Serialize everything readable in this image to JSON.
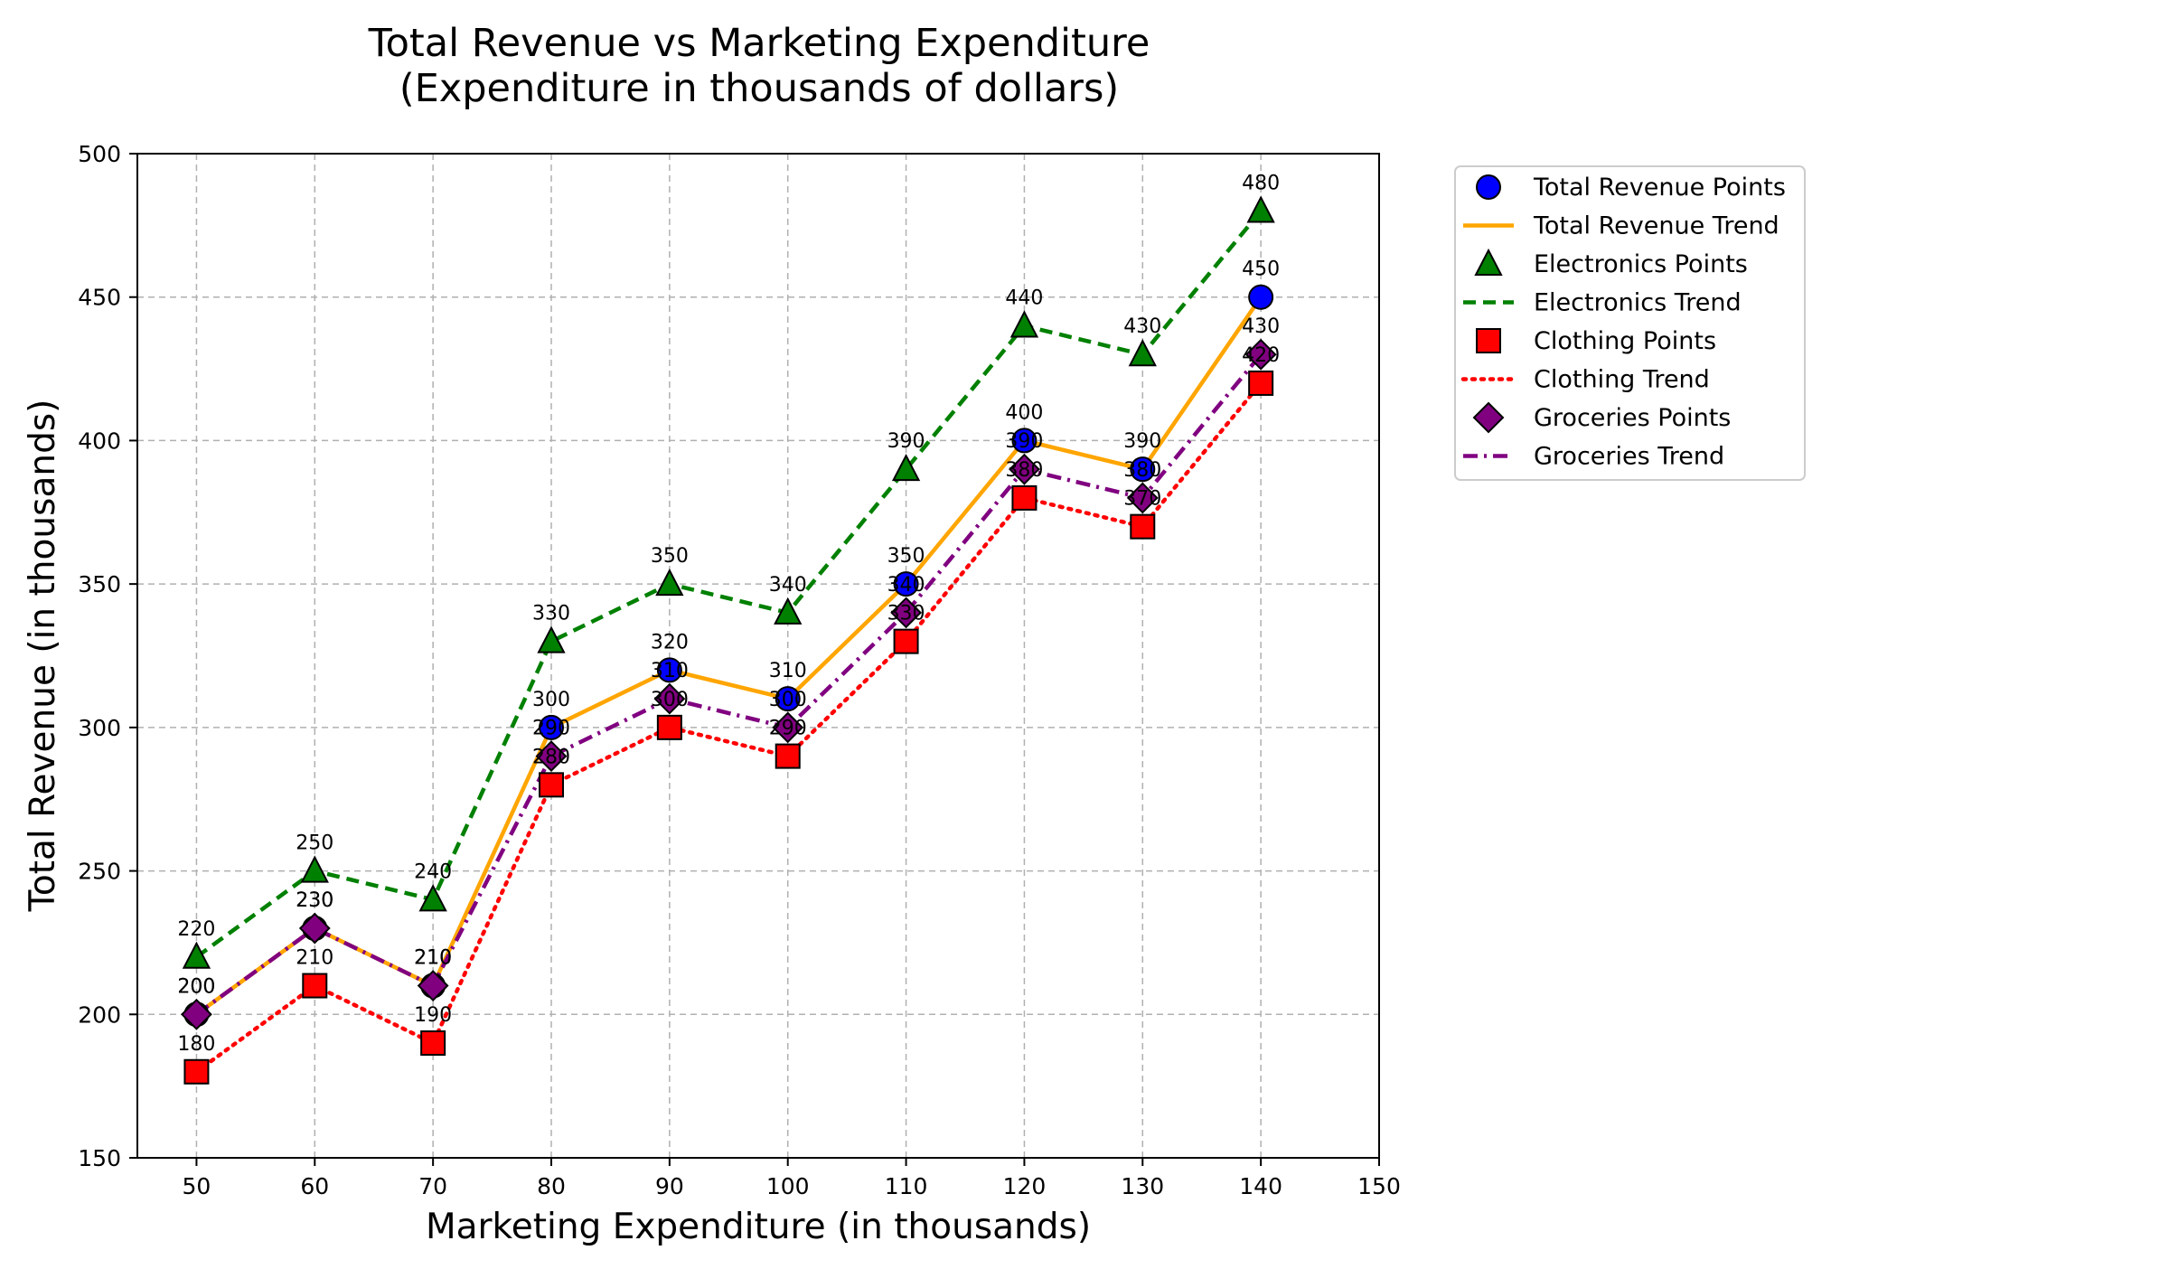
{
  "chart_data": {
    "type": "line",
    "title_lines": [
      "Total Revenue vs Marketing Expenditure",
      "(Expenditure in thousands of dollars)"
    ],
    "xlabel": "Marketing Expenditure (in thousands)",
    "ylabel": "Total Revenue (in thousands)",
    "xlim": [
      45,
      150
    ],
    "ylim": [
      150,
      500
    ],
    "xticks": [
      "50",
      "60",
      "70",
      "80",
      "90",
      "100",
      "110",
      "120",
      "130",
      "140",
      "150"
    ],
    "yticks": [
      "150",
      "200",
      "250",
      "300",
      "350",
      "400",
      "450",
      "500"
    ],
    "grid": true,
    "legend_placement": "outside right, top",
    "x": [
      50,
      60,
      70,
      80,
      90,
      100,
      110,
      120,
      130,
      140
    ],
    "series": [
      {
        "key": "total-revenue",
        "values": [
          200,
          230,
          210,
          300,
          320,
          310,
          350,
          400,
          390,
          450
        ],
        "color": "#0000ff",
        "line_color": "#ffa500",
        "marker": "circle",
        "line_style": "solid",
        "points_label": "Total Revenue Points",
        "trend_label": "Total Revenue Trend"
      },
      {
        "key": "electronics",
        "values": [
          220,
          250,
          240,
          330,
          350,
          340,
          390,
          440,
          430,
          480
        ],
        "color": "#008000",
        "line_color": "#008000",
        "marker": "triangle",
        "line_style": "dashed",
        "points_label": "Electronics Points",
        "trend_label": "Electronics Trend"
      },
      {
        "key": "clothing",
        "values": [
          180,
          210,
          190,
          280,
          300,
          290,
          330,
          380,
          370,
          420
        ],
        "color": "#ff0000",
        "line_color": "#ff0000",
        "marker": "square",
        "line_style": "dotted",
        "points_label": "Clothing Points",
        "trend_label": "Clothing Trend"
      },
      {
        "key": "groceries",
        "values": [
          200,
          230,
          210,
          290,
          310,
          300,
          340,
          390,
          380,
          430
        ],
        "color": "#800080",
        "line_color": "#800080",
        "marker": "diamond",
        "line_style": "dashdot",
        "points_label": "Groceries Points",
        "trend_label": "Groceries Trend"
      }
    ]
  }
}
